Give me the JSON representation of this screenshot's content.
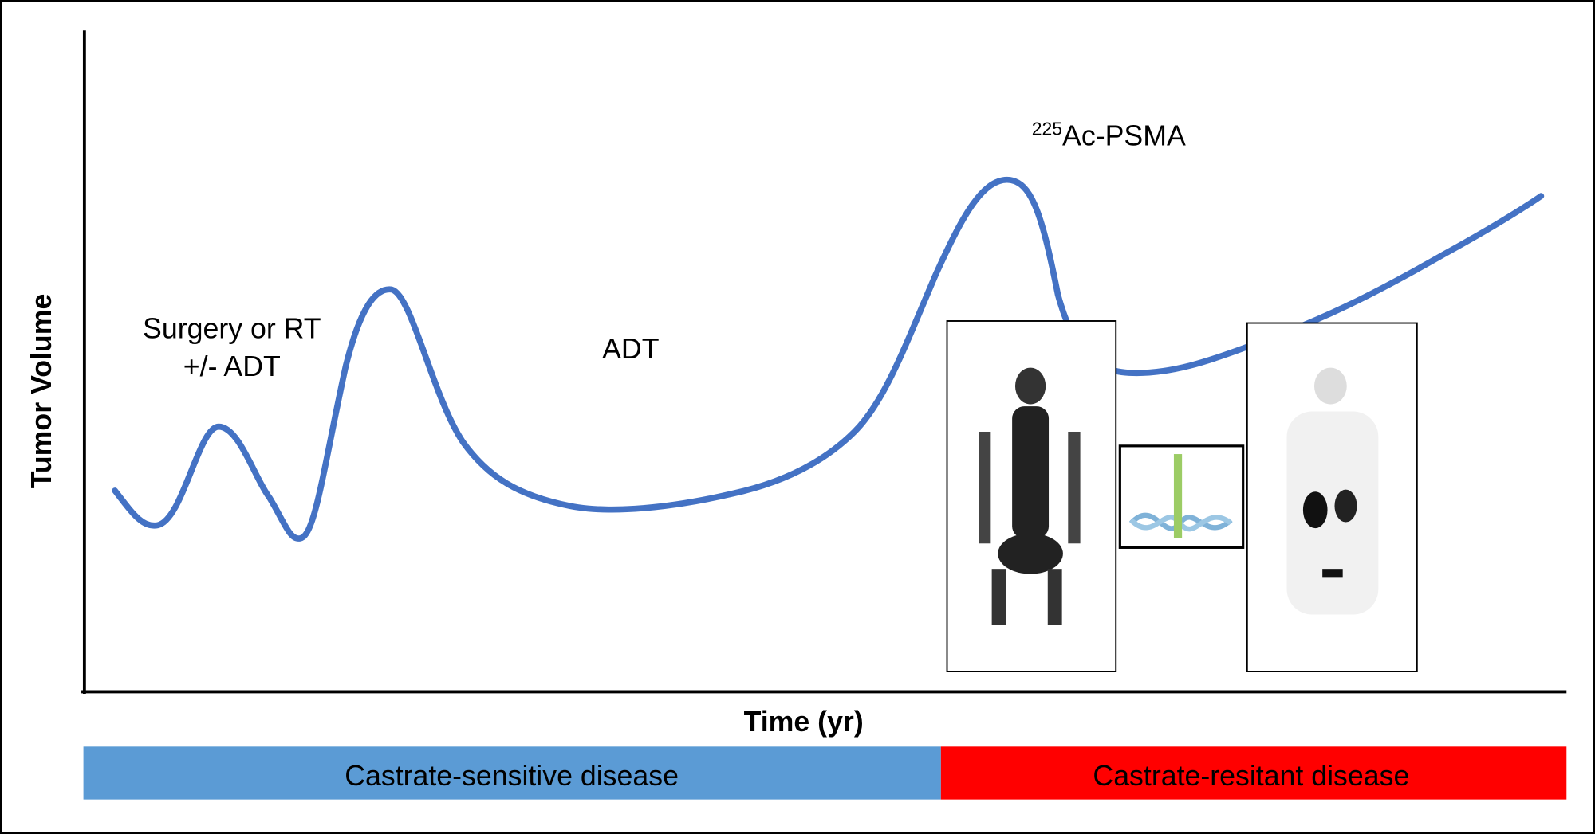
{
  "axes": {
    "y_label": "Tumor Volume",
    "x_label": "Time (yr)"
  },
  "annotations": {
    "surgery": [
      "Surgery or RT",
      "+/- ADT"
    ],
    "adt": "ADT",
    "psma": {
      "superscript": "225",
      "text": "Ac-PSMA"
    }
  },
  "phases": [
    {
      "label": "Castrate-sensitive disease"
    },
    {
      "label": "Castrate-resitant disease"
    }
  ]
}
